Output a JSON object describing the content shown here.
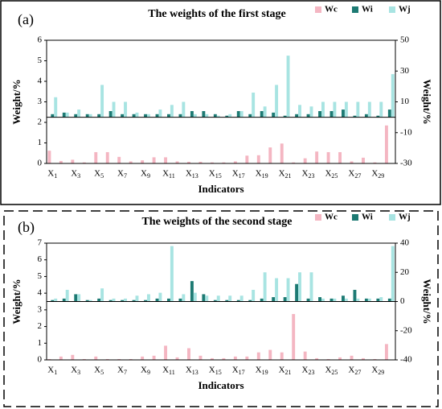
{
  "chart_data": [
    {
      "type": "bar",
      "label": "(a)",
      "title": "The weights of the first stage",
      "x_label": "Indicators",
      "y_label": "Weight/%",
      "y2_label": "Weight/%",
      "legend": "upper right",
      "categories": [
        "X1",
        null,
        "X3",
        null,
        "X5",
        null,
        "X7",
        null,
        "X9",
        null,
        "X11",
        null,
        "X13",
        null,
        "X15",
        null,
        "X17",
        null,
        "X19",
        null,
        "X21",
        null,
        "X23",
        null,
        "X25",
        null,
        "X27",
        null,
        "X29",
        null
      ],
      "series": [
        {
          "name": "Wc",
          "color": "#f4b6c2",
          "values": [
            0.62,
            0.12,
            0.18,
            0.05,
            0.55,
            0.55,
            0.32,
            0.1,
            0.15,
            0.3,
            0.3,
            0.1,
            0.08,
            0.08,
            0.05,
            0.05,
            0.1,
            0.38,
            0.4,
            0.78,
            0.97,
            0.05,
            0.25,
            0.58,
            0.55,
            0.55,
            0.1,
            0.28,
            0.05,
            1.85
          ]
        },
        {
          "name": "Wi",
          "color": "#1d7a73",
          "axis": "y2",
          "values": [
            2,
            3,
            2,
            2,
            2,
            4,
            2,
            2,
            2,
            2,
            2,
            2,
            4,
            4,
            2,
            1,
            4,
            2,
            4,
            3,
            1,
            2,
            2,
            4,
            4,
            5,
            1,
            2,
            1,
            5
          ]
        },
        {
          "name": "Wj",
          "color": "#a8e4e2",
          "axis": "y2",
          "values": [
            13,
            3,
            5,
            2,
            21,
            10,
            10,
            3,
            2,
            5,
            8,
            10,
            2,
            2,
            1,
            2,
            4,
            16,
            7,
            21,
            40,
            8,
            7,
            10,
            10,
            10,
            10,
            10,
            10,
            28
          ]
        }
      ],
      "ylim": [
        0,
        6
      ],
      "yticks": [
        0,
        1,
        2,
        3,
        4,
        5,
        6
      ],
      "y2lim": [
        -30,
        50
      ],
      "y2ticks": [
        -30,
        -10,
        10,
        30,
        50
      ]
    },
    {
      "type": "bar",
      "label": "(b)",
      "title": "The weights of the second stage",
      "x_label": "Indicators",
      "y_label": "Weight/%",
      "y2_label": "Weight/%",
      "legend": "upper right",
      "categories": [
        "X1",
        null,
        "X3",
        null,
        "X5",
        null,
        "X7",
        null,
        "X9",
        null,
        "X11",
        null,
        "X13",
        null,
        "X15",
        null,
        "X17",
        null,
        "X19",
        null,
        "X21",
        null,
        "X23",
        null,
        "X25",
        null,
        "X27",
        null,
        "X29",
        null
      ],
      "series": [
        {
          "name": "Wc",
          "color": "#f4b6c2",
          "values": [
            0.05,
            0.2,
            0.3,
            0.05,
            0.2,
            0.05,
            0.05,
            0.05,
            0.2,
            0.25,
            0.85,
            0.15,
            0.7,
            0.25,
            0.1,
            0.1,
            0.2,
            0.2,
            0.45,
            0.6,
            0.45,
            2.75,
            0.5,
            0.1,
            0.05,
            0.15,
            0.25,
            0.1,
            0.05,
            0.95
          ]
        },
        {
          "name": "Wi",
          "color": "#1d7a73",
          "axis": "y2",
          "values": [
            1,
            2,
            5,
            1,
            2,
            1,
            1,
            1,
            1,
            2,
            2,
            2,
            14,
            5,
            1,
            1,
            1,
            1,
            2,
            3,
            3,
            12,
            2,
            3,
            2,
            4,
            8,
            2,
            2,
            2
          ]
        },
        {
          "name": "Wj",
          "color": "#a8e4e2",
          "axis": "y2",
          "values": [
            2,
            8,
            5,
            1,
            9,
            2,
            2,
            4,
            5,
            6,
            38,
            5,
            6,
            4,
            4,
            4,
            4,
            8,
            20,
            16,
            16,
            20,
            20,
            2,
            2,
            2,
            2,
            2,
            3,
            38
          ]
        }
      ],
      "ylim": [
        0,
        7
      ],
      "yticks": [
        0,
        1,
        2,
        3,
        4,
        5,
        6,
        7
      ],
      "y2lim": [
        -40,
        40
      ],
      "y2ticks": [
        -40,
        -20,
        0,
        20,
        40
      ]
    }
  ]
}
